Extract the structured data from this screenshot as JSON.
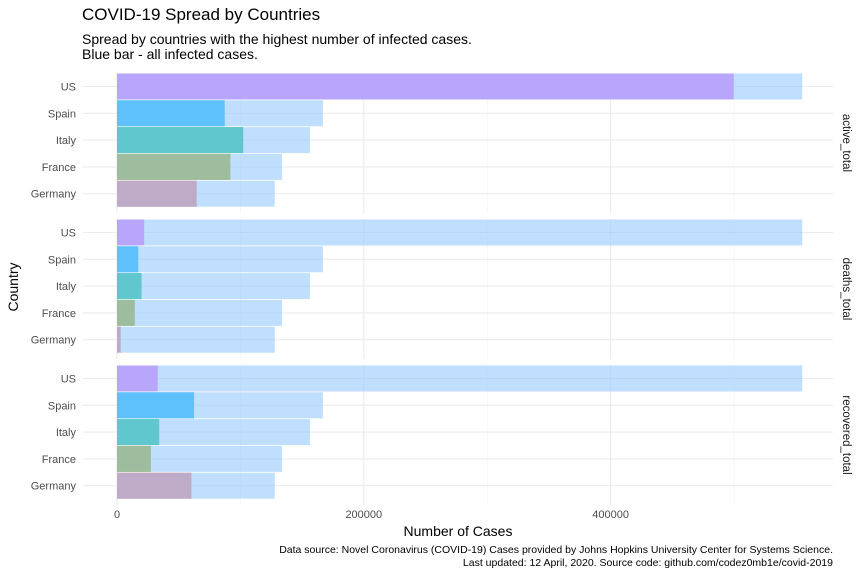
{
  "chart_data": {
    "type": "bar",
    "title": "COVID-19 Spread by Countries",
    "subtitle_lines": [
      "Spread by countries with the highest number of infected cases.",
      "Blue bar - all infected cases."
    ],
    "xlabel": "Number of Cases",
    "ylabel": "Country",
    "xlim": [
      0,
      580000
    ],
    "x_ticks": [
      0,
      200000,
      400000
    ],
    "x_tick_labels": [
      "0",
      "200000",
      "400000"
    ],
    "categories": [
      "US",
      "Spain",
      "Italy",
      "France",
      "Germany"
    ],
    "colors": {
      "US": "#E76BF3",
      "Spain": "#00B0F6",
      "Italy": "#00BF7D",
      "France": "#A3A500",
      "Germany": "#F8766D",
      "total": "#BFDFFC"
    },
    "total_infected": [
      555313,
      166831,
      156363,
      133670,
      127854
    ],
    "panels": [
      {
        "label": "active_total",
        "values": [
          499800,
          87300,
          102300,
          91900,
          64600
        ]
      },
      {
        "label": "deaths_total",
        "values": [
          22020,
          17209,
          19899,
          14412,
          3022
        ]
      },
      {
        "label": "recovered_total",
        "values": [
          32988,
          62391,
          34211,
          27469,
          60300
        ]
      }
    ],
    "grid": true,
    "legend": "none"
  },
  "caption_lines": [
    "Data source: Novel Coronavirus (COVID-19) Cases provided by Johns Hopkins University Center for Systems Science.",
    "Last updated: 12 April, 2020. Source code: github.com/codez0mb1e/covid-2019"
  ]
}
